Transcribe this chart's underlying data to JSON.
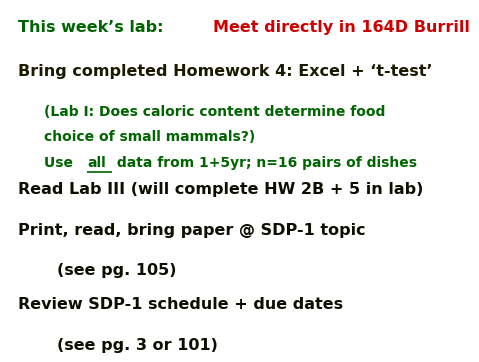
{
  "bg_color": "#ffffff",
  "line1_part1": "This week’s lab: ",
  "line1_part2": "Meet directly in 164D Burrill",
  "line1_color1": "#006400",
  "line1_color2": "#cc0000",
  "line2": "Bring completed Homework 4: Excel + ‘t-test’",
  "line2_color": "#1a1a00",
  "line3": "(Lab I: Does caloric content determine food",
  "line3_color": "#006400",
  "line4": "choice of small mammals?)",
  "line4_color": "#006400",
  "line5_prefix": "Use ",
  "line5_underline": "all",
  "line5_suffix": " data from 1+5yr; n=16 pairs of dishes",
  "line5_color": "#006400",
  "line6": "Read Lab III (will complete HW 2B + 5 in lab)",
  "line6_color": "#0d0d00",
  "line7": "Print, read, bring paper @ SDP-1 topic",
  "line7_color": "#0d0d00",
  "line8": "(see pg. 105)",
  "line8_color": "#0d0d00",
  "line9": "Review SDP-1 schedule + due dates",
  "line9_color": "#0d0d00",
  "line10": "(see pg. 3 or 101)",
  "line10_color": "#0d0d00",
  "fs_title": 11.5,
  "fs_body": 11.5,
  "fs_sub": 10.0
}
